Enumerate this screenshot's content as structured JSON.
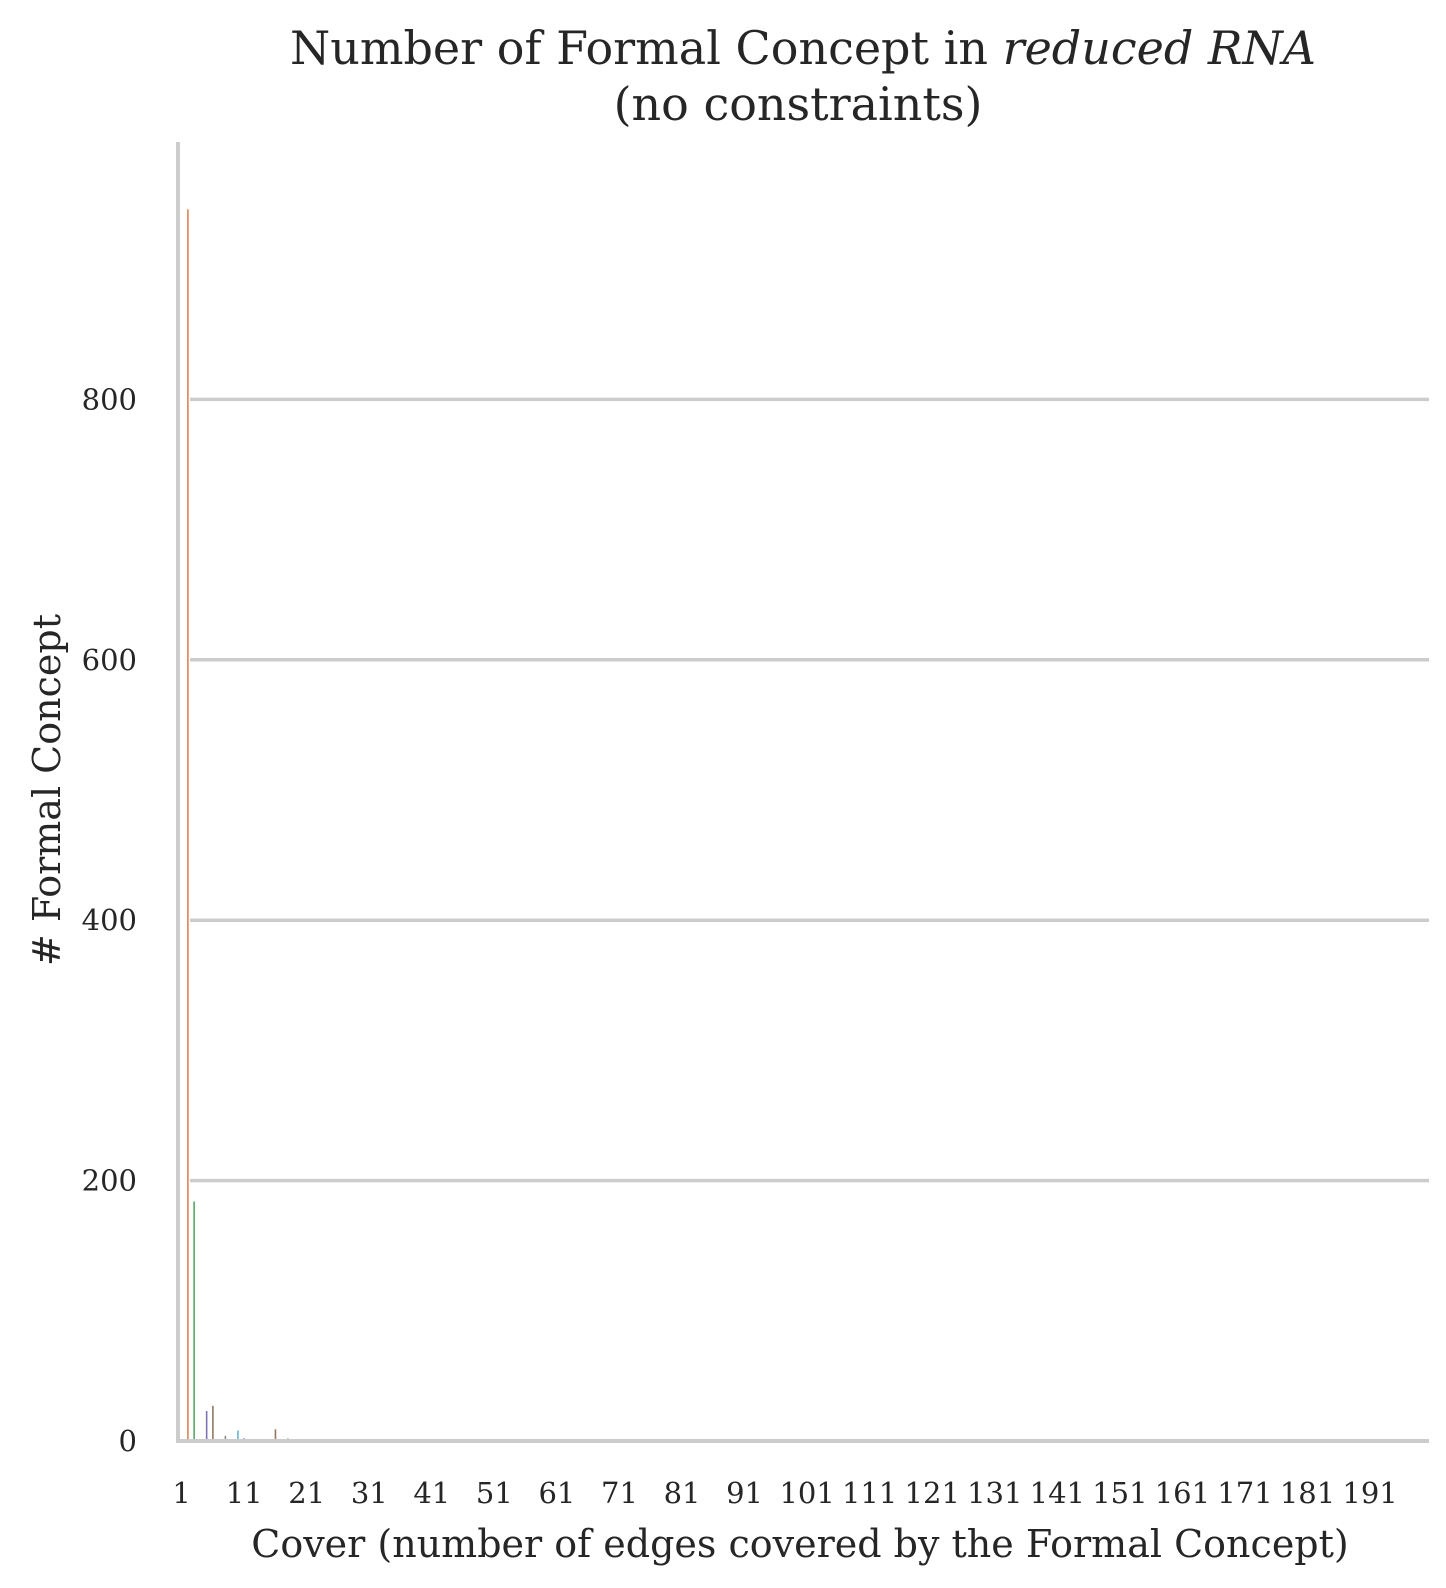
{
  "chart_data": {
    "type": "bar",
    "title": "Number of Formal Concept in",
    "title_emphasis": "reduced RNA",
    "subtitle": "(no constraints)",
    "xlabel": "Cover (number of edges covered by the Formal Concept)",
    "ylabel": "# Formal Concept",
    "ylim": [
      0,
      1000
    ],
    "xlim": [
      0,
      200
    ],
    "yticks": [
      0,
      200,
      400,
      600,
      800
    ],
    "xticks": [
      1,
      11,
      21,
      31,
      41,
      51,
      61,
      71,
      81,
      91,
      101,
      111,
      121,
      131,
      141,
      151,
      161,
      171,
      181,
      191
    ],
    "grid": "horizontal",
    "legend": "none",
    "bar_colors": [
      "#4c72b0",
      "#dd8452",
      "#55a868",
      "#c44e52",
      "#8172b3",
      "#937860",
      "#da8bc3",
      "#8c8c8c",
      "#ccb974",
      "#64b5cd"
    ],
    "categories": [
      1,
      2,
      3,
      4,
      5,
      6,
      7,
      8,
      9,
      10,
      11,
      12,
      13,
      14,
      15,
      16,
      17,
      18,
      19,
      20
    ],
    "values": [
      0,
      946,
      184,
      0,
      23,
      27,
      0,
      4,
      0,
      8,
      2,
      1,
      1,
      1,
      1,
      9,
      1,
      2,
      1,
      1
    ]
  }
}
